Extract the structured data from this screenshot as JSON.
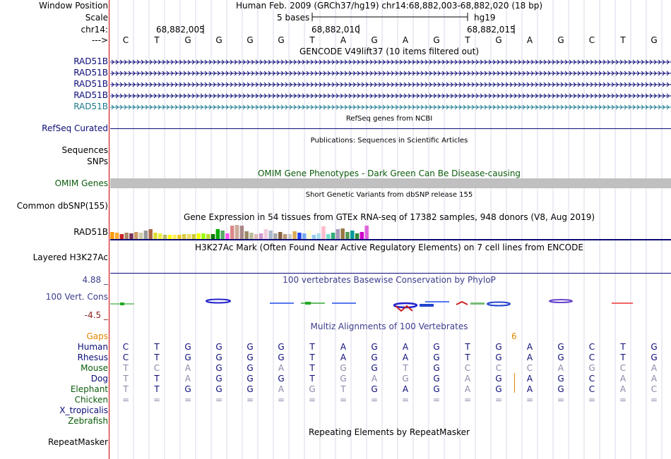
{
  "header": {
    "window_position_label": "Window Position",
    "scale_label": "Scale",
    "chrom_label": "chr14:",
    "arrow_label": "--->",
    "window_text": "Human Feb. 2009 (GRCh37/hg19)   chr14:68,882,003-68,882,020 (18 bp)",
    "scale_text": "5 bases",
    "assembly": "hg19",
    "coords": [
      "68,882,005",
      "68,882,010",
      "68,882,015"
    ]
  },
  "sequence": [
    "C",
    "T",
    "G",
    "G",
    "G",
    "G",
    "T",
    "A",
    "G",
    "A",
    "G",
    "T",
    "G",
    "A",
    "G",
    "C",
    "T",
    "G"
  ],
  "tracks": {
    "gencode": {
      "title": "GENCODE V49lift37 (10 items filtered out)",
      "items": [
        "RAD51B",
        "RAD51B",
        "RAD51B",
        "RAD51B",
        "RAD51B"
      ],
      "colors": [
        "#0c0c78",
        "#0c0c78",
        "#0c0c78",
        "#0c0c78",
        "#1a7a8c"
      ]
    },
    "refseq": {
      "title": "RefSeq genes from NCBI",
      "label": "RefSeq Curated"
    },
    "publications": {
      "title": "Publications: Sequences in Scientific Articles",
      "label1": "Sequences",
      "label2": "SNPs"
    },
    "omim": {
      "title": "OMIM Gene Phenotypes - Dark Green Can Be Disease-causing",
      "label": "OMIM Genes"
    },
    "dbsnp": {
      "title": "Short Genetic Variants from dbSNP release 155",
      "label": "Common dbSNP(155)"
    },
    "gtex": {
      "title": "Gene Expression in 54 tissues from GTEx RNA-seq of 17382 samples, 948 donors (V8, Aug 2019)",
      "label": "RAD51B",
      "values": [
        0.5,
        0.45,
        0.35,
        0.45,
        0.4,
        0.5,
        0.45,
        0.6,
        0.7,
        0.45,
        0.4,
        0.3,
        0.3,
        0.3,
        0.3,
        0.35,
        0.35,
        0.35,
        0.4,
        0.4,
        0.35,
        0.35,
        0.7,
        0.6,
        0.4,
        0.95,
        1.0,
        0.95,
        0.55,
        0.45,
        0.35,
        0.4,
        0.7,
        0.6,
        0.4,
        0.5,
        0.35,
        0.35,
        0.55,
        0.45,
        0.4,
        0.6,
        0.3,
        0.4,
        0.9,
        0.35,
        0.45,
        0.7,
        0.75,
        0.5,
        0.6,
        0.4,
        0.5,
        0.95
      ],
      "colors": [
        "#ff9900",
        "#ffaa33",
        "#cc2222",
        "#aa8866",
        "#773355",
        "#cc9966",
        "#ccccaa",
        "#999999",
        "#aa6644",
        "#dddd33",
        "#eeee44",
        "#bbbb66",
        "#ffff00",
        "#ffee55",
        "#eecc22",
        "#ddcc44",
        "#eedd66",
        "#cccc33",
        "#f4ff00",
        "#99ff00",
        "#bbdd33",
        "#007700",
        "#00aa00",
        "#55aa66",
        "#ff55ee",
        "#dd8888",
        "#ccaa99",
        "#aa8888",
        "#998866",
        "#bbbb99",
        "#ddbbbb",
        "#cc99cc",
        "#eeccdd",
        "#aabbcc",
        "#aaaaaa",
        "#886644",
        "#bb9977",
        "#cccccc",
        "#ddaa55",
        "#2244ee",
        "#77aaee",
        "#ffffcc",
        "#99ccee",
        "#aaddee",
        "#ffbbcc",
        "#77ddcc",
        "#33aa77",
        "#aa99bb",
        "#997744",
        "#559955",
        "#009999",
        "#338833",
        "#cc00cc",
        "#dd66dd"
      ]
    },
    "h3k27ac": {
      "title": "H3K27Ac Mark (Often Found Near Active Regulatory Elements) on 7 cell lines from ENCODE",
      "label": "Layered H3K27Ac"
    },
    "phylop": {
      "title": "100 vertebrates Basewise Conservation by PhyloP",
      "label": "100 Vert. Cons",
      "max": "4.88 _",
      "min": "-4.5 _"
    },
    "multiz": {
      "title": "Multiz Alignments of 100 Vertebrates",
      "gaps_label": "Gaps",
      "gap_count": "6",
      "species": [
        {
          "name": "Human",
          "color": "#0c0c78",
          "seq": "CTGGGGTAGAGTGAGCTG"
        },
        {
          "name": "Rhesus",
          "color": "#0c0c78",
          "seq": "CTGGGGTAGAGTGAGCTG"
        },
        {
          "name": "Mouse",
          "color": "#0c5c0c",
          "seq": "TCAGGATGGTGCCCAGCA"
        },
        {
          "name": "Dog",
          "color": "#0c0c78",
          "seq": "TTAGGGTGAGGAGAGCAA"
        },
        {
          "name": "Elephant",
          "color": "#0c5c0c",
          "seq": "TTGGGAGTGAGAGAGCAC"
        },
        {
          "name": "Chicken",
          "color": "#0c5c0c",
          "seq": "=================="
        },
        {
          "name": "X_tropicalis",
          "color": "#0c0c78",
          "seq": ""
        },
        {
          "name": "Zebrafish",
          "color": "#0c5c0c",
          "seq": ""
        }
      ]
    },
    "repeatmasker": {
      "title": "Repeating Elements by RepeatMasker",
      "label": "RepeatMasker"
    }
  },
  "colors": {
    "gencode_blue": "#0c0c78",
    "omim_green": "#0c5c0c",
    "gray": "#c0c0c0",
    "gaps_orange": "#e08800",
    "phylop_blue": "#3c3c8c",
    "phylop_red": "#8c1c1c"
  }
}
